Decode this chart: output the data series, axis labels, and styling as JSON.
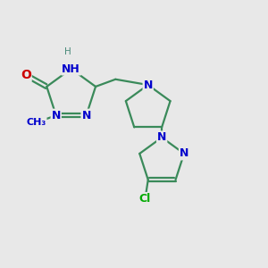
{
  "bg_color": "#e8e8e8",
  "bond_color": "#3a8a5a",
  "bond_width": 1.6,
  "N_color": "#0000cc",
  "O_color": "#cc0000",
  "Cl_color": "#00aa00",
  "figsize": [
    3.0,
    3.0
  ],
  "dpi": 100,
  "xlim": [
    0.05,
    0.95
  ],
  "ylim": [
    0.05,
    0.95
  ]
}
